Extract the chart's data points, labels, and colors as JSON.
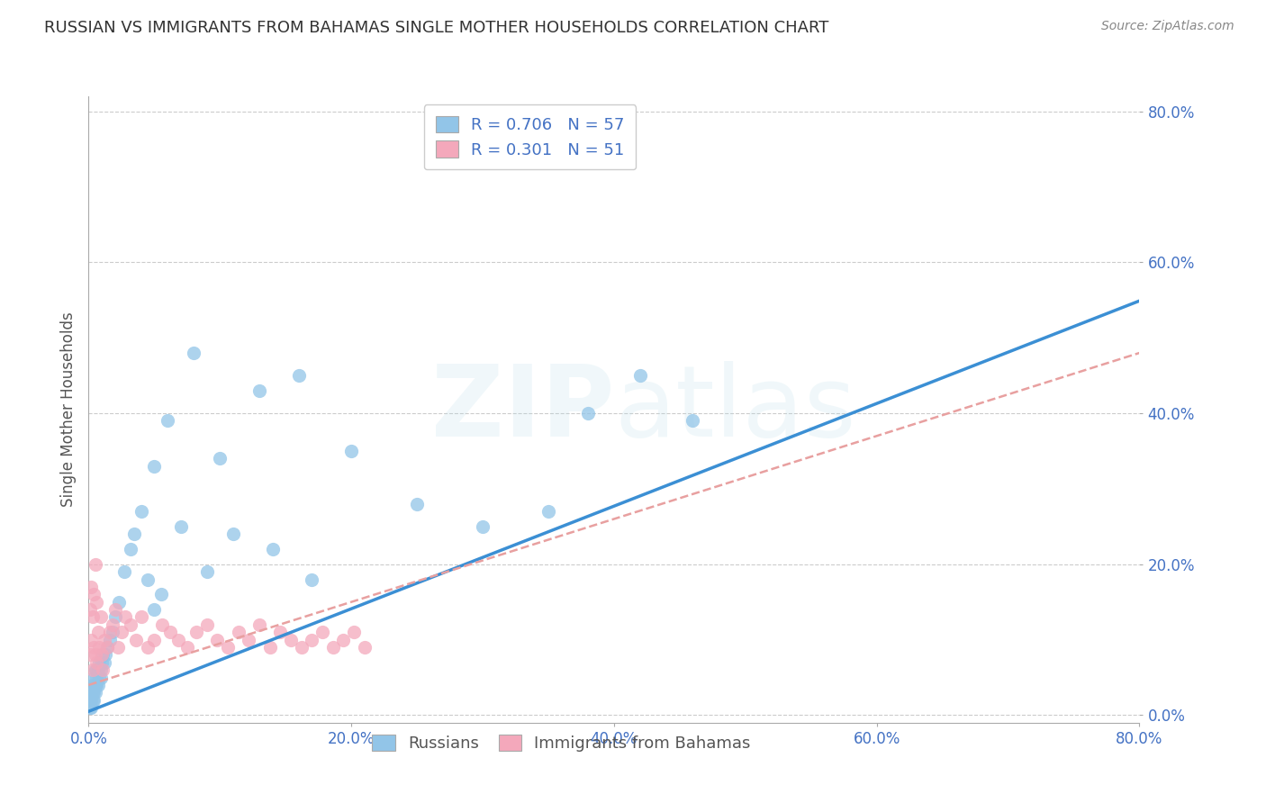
{
  "title": "RUSSIAN VS IMMIGRANTS FROM BAHAMAS SINGLE MOTHER HOUSEHOLDS CORRELATION CHART",
  "source": "Source: ZipAtlas.com",
  "ylabel": "Single Mother Households",
  "watermark": "ZIPatlas",
  "xlim": [
    0.0,
    0.8
  ],
  "ylim": [
    -0.01,
    0.82
  ],
  "xticks": [
    0.0,
    0.2,
    0.4,
    0.6,
    0.8
  ],
  "yticks": [
    0.0,
    0.2,
    0.4,
    0.6,
    0.8
  ],
  "xtick_labels": [
    "0.0%",
    "20.0%",
    "40.0%",
    "60.0%",
    "80.0%"
  ],
  "ytick_labels": [
    "0.0%",
    "20.0%",
    "40.0%",
    "60.0%",
    "80.0%"
  ],
  "russian_R": 0.706,
  "russian_N": 57,
  "bahamas_R": 0.301,
  "bahamas_N": 51,
  "russian_color": "#92C5E8",
  "bahamas_color": "#F4A8BB",
  "russian_line_color": "#3B8FD4",
  "bahamas_line_color": "#E8A0A0",
  "tick_color": "#4472C4",
  "title_fontsize": 13,
  "label_fontsize": 12,
  "tick_fontsize": 12,
  "legend_fontsize": 13,
  "background_color": "#ffffff",
  "grid_color": "#CCCCCC",
  "russian_slope": 0.68,
  "russian_intercept": 0.005,
  "bahamas_slope": 0.55,
  "bahamas_intercept": 0.04,
  "russian_x": [
    0.001,
    0.001,
    0.002,
    0.002,
    0.002,
    0.003,
    0.003,
    0.003,
    0.004,
    0.004,
    0.004,
    0.005,
    0.005,
    0.005,
    0.006,
    0.006,
    0.006,
    0.007,
    0.007,
    0.008,
    0.008,
    0.009,
    0.009,
    0.01,
    0.011,
    0.012,
    0.013,
    0.014,
    0.016,
    0.018,
    0.02,
    0.023,
    0.027,
    0.032,
    0.04,
    0.05,
    0.06,
    0.08,
    0.1,
    0.13,
    0.16,
    0.2,
    0.25,
    0.3,
    0.35,
    0.38,
    0.42,
    0.46,
    0.05,
    0.07,
    0.09,
    0.11,
    0.14,
    0.17,
    0.055,
    0.045,
    0.035
  ],
  "russian_y": [
    0.01,
    0.02,
    0.01,
    0.03,
    0.02,
    0.02,
    0.04,
    0.03,
    0.03,
    0.05,
    0.02,
    0.04,
    0.06,
    0.03,
    0.05,
    0.04,
    0.06,
    0.04,
    0.06,
    0.05,
    0.07,
    0.06,
    0.05,
    0.07,
    0.08,
    0.07,
    0.08,
    0.09,
    0.1,
    0.11,
    0.13,
    0.15,
    0.19,
    0.22,
    0.27,
    0.33,
    0.39,
    0.48,
    0.34,
    0.43,
    0.45,
    0.35,
    0.28,
    0.25,
    0.27,
    0.4,
    0.45,
    0.39,
    0.14,
    0.25,
    0.19,
    0.24,
    0.22,
    0.18,
    0.16,
    0.18,
    0.24
  ],
  "bahamas_x": [
    0.001,
    0.001,
    0.002,
    0.002,
    0.003,
    0.003,
    0.004,
    0.004,
    0.005,
    0.005,
    0.006,
    0.006,
    0.007,
    0.008,
    0.009,
    0.01,
    0.011,
    0.012,
    0.014,
    0.016,
    0.018,
    0.02,
    0.022,
    0.025,
    0.028,
    0.032,
    0.036,
    0.04,
    0.045,
    0.05,
    0.056,
    0.062,
    0.068,
    0.075,
    0.082,
    0.09,
    0.098,
    0.106,
    0.114,
    0.122,
    0.13,
    0.138,
    0.146,
    0.154,
    0.162,
    0.17,
    0.178,
    0.186,
    0.194,
    0.202,
    0.21
  ],
  "bahamas_y": [
    0.08,
    0.14,
    0.1,
    0.17,
    0.06,
    0.13,
    0.09,
    0.16,
    0.08,
    0.2,
    0.07,
    0.15,
    0.11,
    0.09,
    0.13,
    0.08,
    0.06,
    0.1,
    0.09,
    0.11,
    0.12,
    0.14,
    0.09,
    0.11,
    0.13,
    0.12,
    0.1,
    0.13,
    0.09,
    0.1,
    0.12,
    0.11,
    0.1,
    0.09,
    0.11,
    0.12,
    0.1,
    0.09,
    0.11,
    0.1,
    0.12,
    0.09,
    0.11,
    0.1,
    0.09,
    0.1,
    0.11,
    0.09,
    0.1,
    0.11,
    0.09
  ]
}
